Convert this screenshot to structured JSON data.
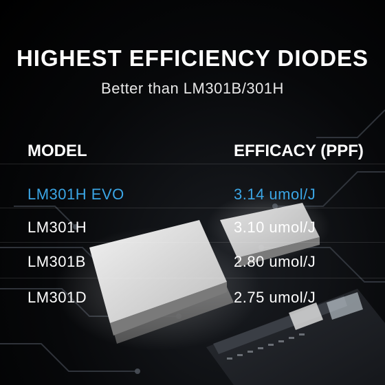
{
  "headline": "HIGHEST EFFICIENCY DIODES",
  "subheadline": "Better than LM301B/301H",
  "table": {
    "headers": {
      "model": "MODEL",
      "efficacy": "EFFICACY (PPF)"
    },
    "rows": [
      {
        "model": "LM301H EVO",
        "efficacy": "3.14 umol/J",
        "highlight": true
      },
      {
        "model": "LM301H",
        "efficacy": "3.10 umol/J",
        "highlight": false
      },
      {
        "model": "LM301B",
        "efficacy": "2.80 umol/J",
        "highlight": false
      },
      {
        "model": "LM301D",
        "efficacy": "2.75 umol/J",
        "highlight": false
      }
    ]
  },
  "colors": {
    "background": "#000000",
    "highlight": "#3ba6e6",
    "text": "#ffffff"
  }
}
